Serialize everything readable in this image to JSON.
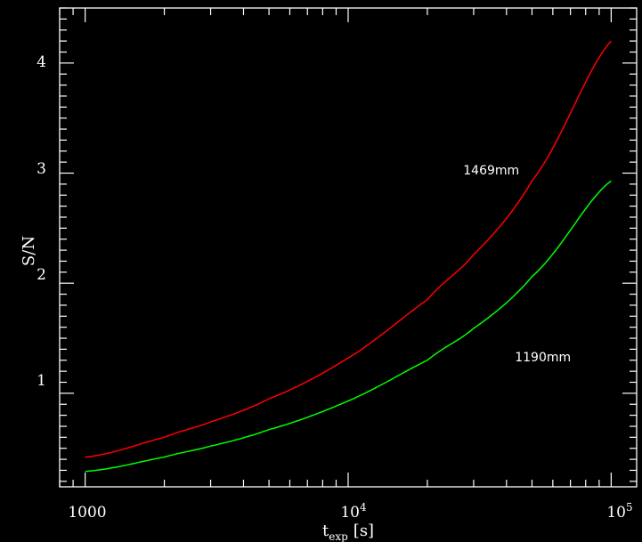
{
  "chart_data": {
    "type": "line",
    "title": "",
    "xlabel": "t",
    "xlabel_subscript": "exp",
    "xlabel_unit": "[s]",
    "ylabel": "S/N",
    "xscale": "log",
    "xlim": [
      800,
      125000
    ],
    "ylim": [
      0.15,
      4.5
    ],
    "grid": false,
    "legend": "none (series labelled inline)",
    "x_tick_labels": [
      {
        "value": 1000,
        "text": "1000"
      },
      {
        "value": 10000,
        "base": "10",
        "exp": "4"
      },
      {
        "value": 100000,
        "base": "10",
        "exp": "5"
      }
    ],
    "y_tick_labels": [
      {
        "value": 1,
        "text": "1"
      },
      {
        "value": 2,
        "text": "2"
      },
      {
        "value": 3,
        "text": "3"
      },
      {
        "value": 4,
        "text": "4"
      }
    ],
    "x": [
      1000,
      2000,
      3000,
      5000,
      10000,
      20000,
      30000,
      50000,
      100000
    ],
    "series": [
      {
        "name": "1469mm",
        "color": "#ff0000",
        "values": [
          0.42,
          0.6,
          0.74,
          0.95,
          1.32,
          1.85,
          2.26,
          2.93,
          4.2
        ],
        "label_at": {
          "x": 35000,
          "y": 3.03
        }
      },
      {
        "name": "1190mm",
        "color": "#00ff00",
        "values": [
          0.29,
          0.42,
          0.52,
          0.67,
          0.93,
          1.3,
          1.59,
          2.06,
          2.93
        ],
        "label_at": {
          "x": 55000,
          "y": 1.33
        }
      }
    ]
  }
}
